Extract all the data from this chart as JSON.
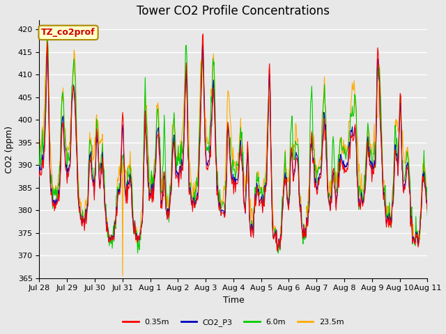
{
  "title": "Tower CO2 Profile Concentrations",
  "xlabel": "Time",
  "ylabel": "CO2 (ppm)",
  "ylim": [
    365,
    422
  ],
  "yticks": [
    365,
    370,
    375,
    380,
    385,
    390,
    395,
    400,
    405,
    410,
    415,
    420
  ],
  "background_color": "#e8e8e8",
  "plot_bg_color": "#e8e8e8",
  "colors": {
    "0.35m": "#ff0000",
    "CO2_P3": "#0000bb",
    "6.0m": "#00cc00",
    "23.5m": "#ffaa00"
  },
  "annotation_text": "TZ_co2prof",
  "annotation_color": "#cc0000",
  "annotation_bg": "#ffffcc",
  "annotation_border": "#aa8800",
  "x_tick_labels": [
    "Jul 28",
    "Jul 29",
    "Jul 30",
    "Jul 31",
    "Aug 1",
    "Aug 2",
    "Aug 3",
    "Aug 4",
    "Aug 5",
    "Aug 6",
    "Aug 7",
    "Aug 8",
    "Aug 9",
    "Aug 10",
    "Aug 11"
  ],
  "title_fontsize": 12,
  "label_fontsize": 9,
  "tick_fontsize": 8,
  "grid_color": "#ffffff",
  "line_width": 0.8
}
